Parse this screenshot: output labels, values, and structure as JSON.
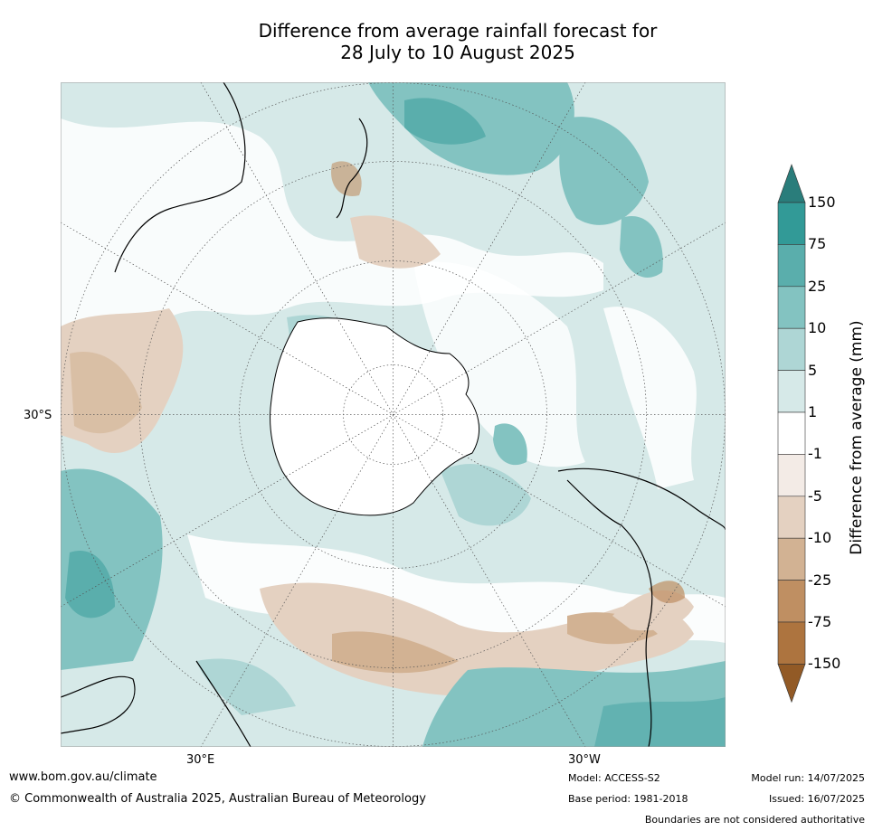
{
  "title_line1": "Difference from average rainfall forecast for",
  "title_line2": "28 July to 10 August 2025",
  "map": {
    "projection": "south-polar stereographic",
    "lat_label": "30°S",
    "lon_label_east": "30°E",
    "lon_label_west": "30°W"
  },
  "colorbar": {
    "title": "Difference from average (mm)",
    "ticks": [
      "150",
      "75",
      "25",
      "10",
      "5",
      "1",
      "-1",
      "-5",
      "-10",
      "-25",
      "-75",
      "-150"
    ],
    "levels": [
      {
        "range": ">150",
        "color": "#2a7d7b"
      },
      {
        "range": "75 to 150",
        "color": "#329a97"
      },
      {
        "range": "25 to 75",
        "color": "#5aaeac"
      },
      {
        "range": "10 to 25",
        "color": "#83c3c1"
      },
      {
        "range": "5 to 10",
        "color": "#aed6d5"
      },
      {
        "range": "1 to 5",
        "color": "#d6e9e8"
      },
      {
        "range": "-1 to 1",
        "color": "#ffffff"
      },
      {
        "range": "-5 to -1",
        "color": "#f3ebe6"
      },
      {
        "range": "-10 to -5",
        "color": "#e4d1c1"
      },
      {
        "range": "-25 to -10",
        "color": "#d2b293"
      },
      {
        "range": "-75 to -25",
        "color": "#bf8f62"
      },
      {
        "range": "-150 to -75",
        "color": "#ad743f"
      },
      {
        "range": "<-150",
        "color": "#925a26"
      }
    ]
  },
  "footer": {
    "website": "www.bom.gov.au/climate",
    "copyright": "© Commonwealth of Australia 2025, Australian Bureau of Meteorology",
    "model": "Model: ACCESS-S2",
    "base_period": "Base period: 1981-2018",
    "model_run": "Model run: 14/07/2025",
    "issued": "Issued: 16/07/2025",
    "disclaimer": "Boundaries are not considered authoritative"
  }
}
